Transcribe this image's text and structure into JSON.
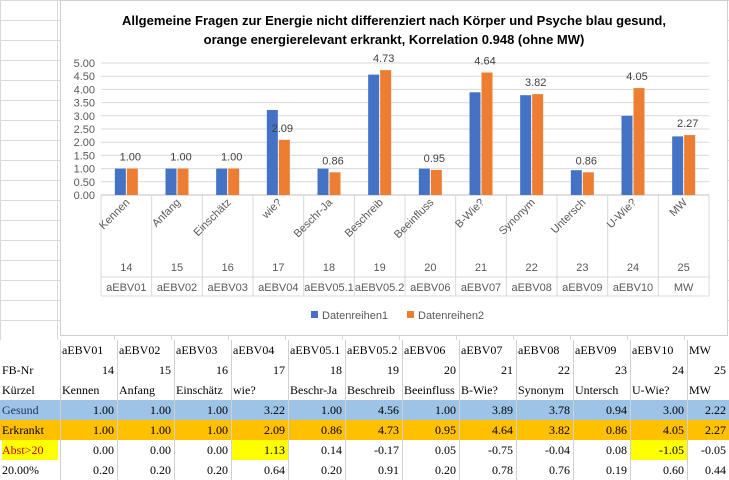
{
  "chart_data": {
    "type": "bar",
    "title": [
      "Allgemeine Fragen zur Energie nicht differenziert nach Körper und  Psyche blau gesund,",
      "orange energierelevant erkrankt, Korrelation 0.948 (ohne MW)"
    ],
    "categories": [
      "Kennen",
      "Anfang",
      "Einschätz",
      "wie?",
      "Beschr-Ja",
      "Beschreib",
      "Beeinfluss",
      "B-Wie?",
      "Synonym",
      "Untersch",
      "U-Wie?",
      "MW"
    ],
    "category_numbers": [
      "14",
      "15",
      "16",
      "17",
      "18",
      "19",
      "20",
      "21",
      "22",
      "23",
      "24",
      "25"
    ],
    "category_codes": [
      "aEBV01",
      "aEBV02",
      "aEBV03",
      "aEBV04",
      "aEBV05.1",
      "aEBV05.2",
      "aEBV06",
      "aEBV07",
      "aEBV08",
      "aEBV09",
      "aEBV10",
      "MW"
    ],
    "series": [
      {
        "name": "Datenreihen1",
        "color": "#4472c4",
        "values": [
          1.0,
          1.0,
          1.0,
          3.22,
          1.0,
          4.56,
          1.0,
          3.89,
          3.78,
          0.94,
          3.0,
          2.22
        ]
      },
      {
        "name": "Datenreihen2",
        "color": "#ed7d31",
        "values": [
          1.0,
          1.0,
          1.0,
          2.09,
          0.86,
          4.73,
          0.95,
          4.64,
          3.82,
          0.86,
          4.05,
          2.27
        ],
        "data_labels": [
          "1.00",
          "1.00",
          "1.00",
          "2.09",
          "0.86",
          "4.73",
          "0.95",
          "4.64",
          "3.82",
          "0.86",
          "4.05",
          "2.27"
        ]
      }
    ],
    "yticks": [
      "0.00",
      "0.50",
      "1.00",
      "1.50",
      "2.00",
      "2.50",
      "3.00",
      "3.50",
      "4.00",
      "4.50",
      "5.00"
    ],
    "ylim": [
      0,
      5
    ],
    "grid": true,
    "legend": "bottom"
  },
  "table": {
    "columns": [
      "aEBV01",
      "aEBV02",
      "aEBV03",
      "aEBV04",
      "aEBV05.1",
      "aEBV05.2",
      "aEBV06",
      "aEBV07",
      "aEBV08",
      "aEBV09",
      "aEBV10",
      "MW"
    ],
    "rows": [
      {
        "label": "FB-Nr",
        "bg": "#ffffff",
        "cells": [
          "14",
          "15",
          "16",
          "17",
          "18",
          "19",
          "20",
          "21",
          "22",
          "23",
          "24",
          "25"
        ]
      },
      {
        "label": "Kürzel",
        "bg": "#ffffff",
        "cells": [
          "Kennen",
          "Anfang",
          "Einschätz",
          "wie?",
          "Beschr-Ja",
          "Beschreib",
          "Beeinfluss",
          "B-Wie?",
          "Synonym",
          "Untersch",
          "U-Wie?",
          "MW"
        ]
      },
      {
        "label": "Gesund",
        "bg": "#9dc3e6",
        "cells": [
          "1.00",
          "1.00",
          "1.00",
          "3.22",
          "1.00",
          "4.56",
          "1.00",
          "3.89",
          "3.78",
          "0.94",
          "3.00",
          "2.22"
        ]
      },
      {
        "label": "Erkrankt",
        "bg": "#ffc000",
        "cells": [
          "1.00",
          "1.00",
          "1.00",
          "2.09",
          "0.86",
          "4.73",
          "0.95",
          "4.64",
          "3.82",
          "0.86",
          "4.05",
          "2.27"
        ]
      },
      {
        "label": "Abst>20",
        "bg": "#ffffff",
        "cells": [
          "0.00",
          "0.00",
          "0.00",
          "1.13",
          "0.14",
          "-0.17",
          "0.05",
          "-0.75",
          "-0.04",
          "0.08",
          "-1.05",
          "-0.05"
        ],
        "highlight": [
          3,
          10
        ]
      },
      {
        "label": "20.00%",
        "bg": "#ffffff",
        "cells": [
          "0.20",
          "0.20",
          "0.20",
          "0.64",
          "0.20",
          "0.91",
          "0.20",
          "0.78",
          "0.76",
          "0.19",
          "0.60",
          "0.44"
        ]
      }
    ]
  }
}
